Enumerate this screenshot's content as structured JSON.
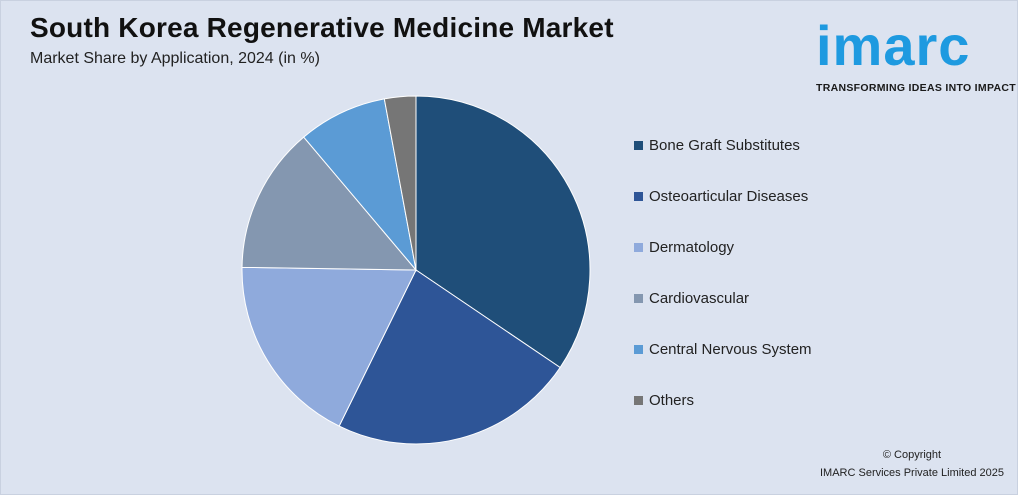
{
  "header": {
    "title": "South Korea Regenerative Medicine Market",
    "subtitle": "Market Share by Application, 2024 (in %)"
  },
  "logo": {
    "wordmark": "imarc",
    "tagline": "TRANSFORMING IDEAS INTO IMPACT",
    "color": "#1e9ae0"
  },
  "chart_data": {
    "type": "pie",
    "title": "South Korea Regenerative Medicine Market",
    "subtitle": "Market Share by Application, 2024 (in %)",
    "legend_position": "right",
    "slices": [
      {
        "label": "Bone Graft Substitutes",
        "value": 35.5,
        "color": "#1f4e79"
      },
      {
        "label": "Osteoarticular Diseases",
        "value": 23.5,
        "color": "#2e5597"
      },
      {
        "label": "Dermatology",
        "value": 18.5,
        "color": "#8faadc"
      },
      {
        "label": "Cardiovascular",
        "value": 14,
        "color": "#8497b0"
      },
      {
        "label": "Central Nervous System",
        "value": 8.5,
        "color": "#5b9bd5"
      },
      {
        "label": "Others",
        "value": 3,
        "color": "#767676"
      }
    ]
  },
  "footer": {
    "copyright_line1": "© Copyright",
    "copyright_line2": "IMARC Services Private Limited 2025"
  }
}
